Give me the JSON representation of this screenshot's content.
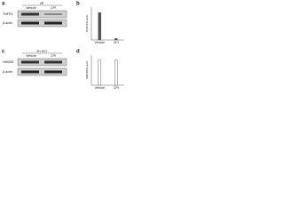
{
  "panels": [
    {
      "label": "a",
      "condition": "I/R",
      "lanes": [
        "Vehicle",
        "CPI"
      ],
      "blots": [
        "TNFR1",
        "β-actin"
      ]
    },
    {
      "label": "b",
      "y_label": "TNFR1/β-actin",
      "categories": [
        "Vehicle",
        "CPI"
      ],
      "values": [
        1.0,
        0.05
      ],
      "ylim": [
        0,
        1.2
      ]
    },
    {
      "label": "c",
      "condition": "Sh-ISO",
      "lanes": [
        "Vehicle",
        "CPI"
      ],
      "blots": [
        "HMGB1",
        "β-actin"
      ]
    },
    {
      "label": "d",
      "y_label": "HMGB1/β-actin",
      "categories": [
        "Vehicle",
        "CPI"
      ],
      "values": [
        1.0,
        1.0
      ],
      "ylim": [
        0,
        1.2
      ]
    }
  ]
}
